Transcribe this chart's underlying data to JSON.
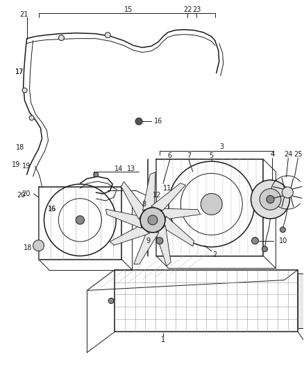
{
  "background_color": "#ffffff",
  "line_color": "#1a1a1a",
  "label_color": "#111111",
  "figsize": [
    4.38,
    5.33
  ],
  "dpi": 100,
  "lw_thin": 0.7,
  "lw_med": 1.1,
  "lw_thick": 1.8
}
